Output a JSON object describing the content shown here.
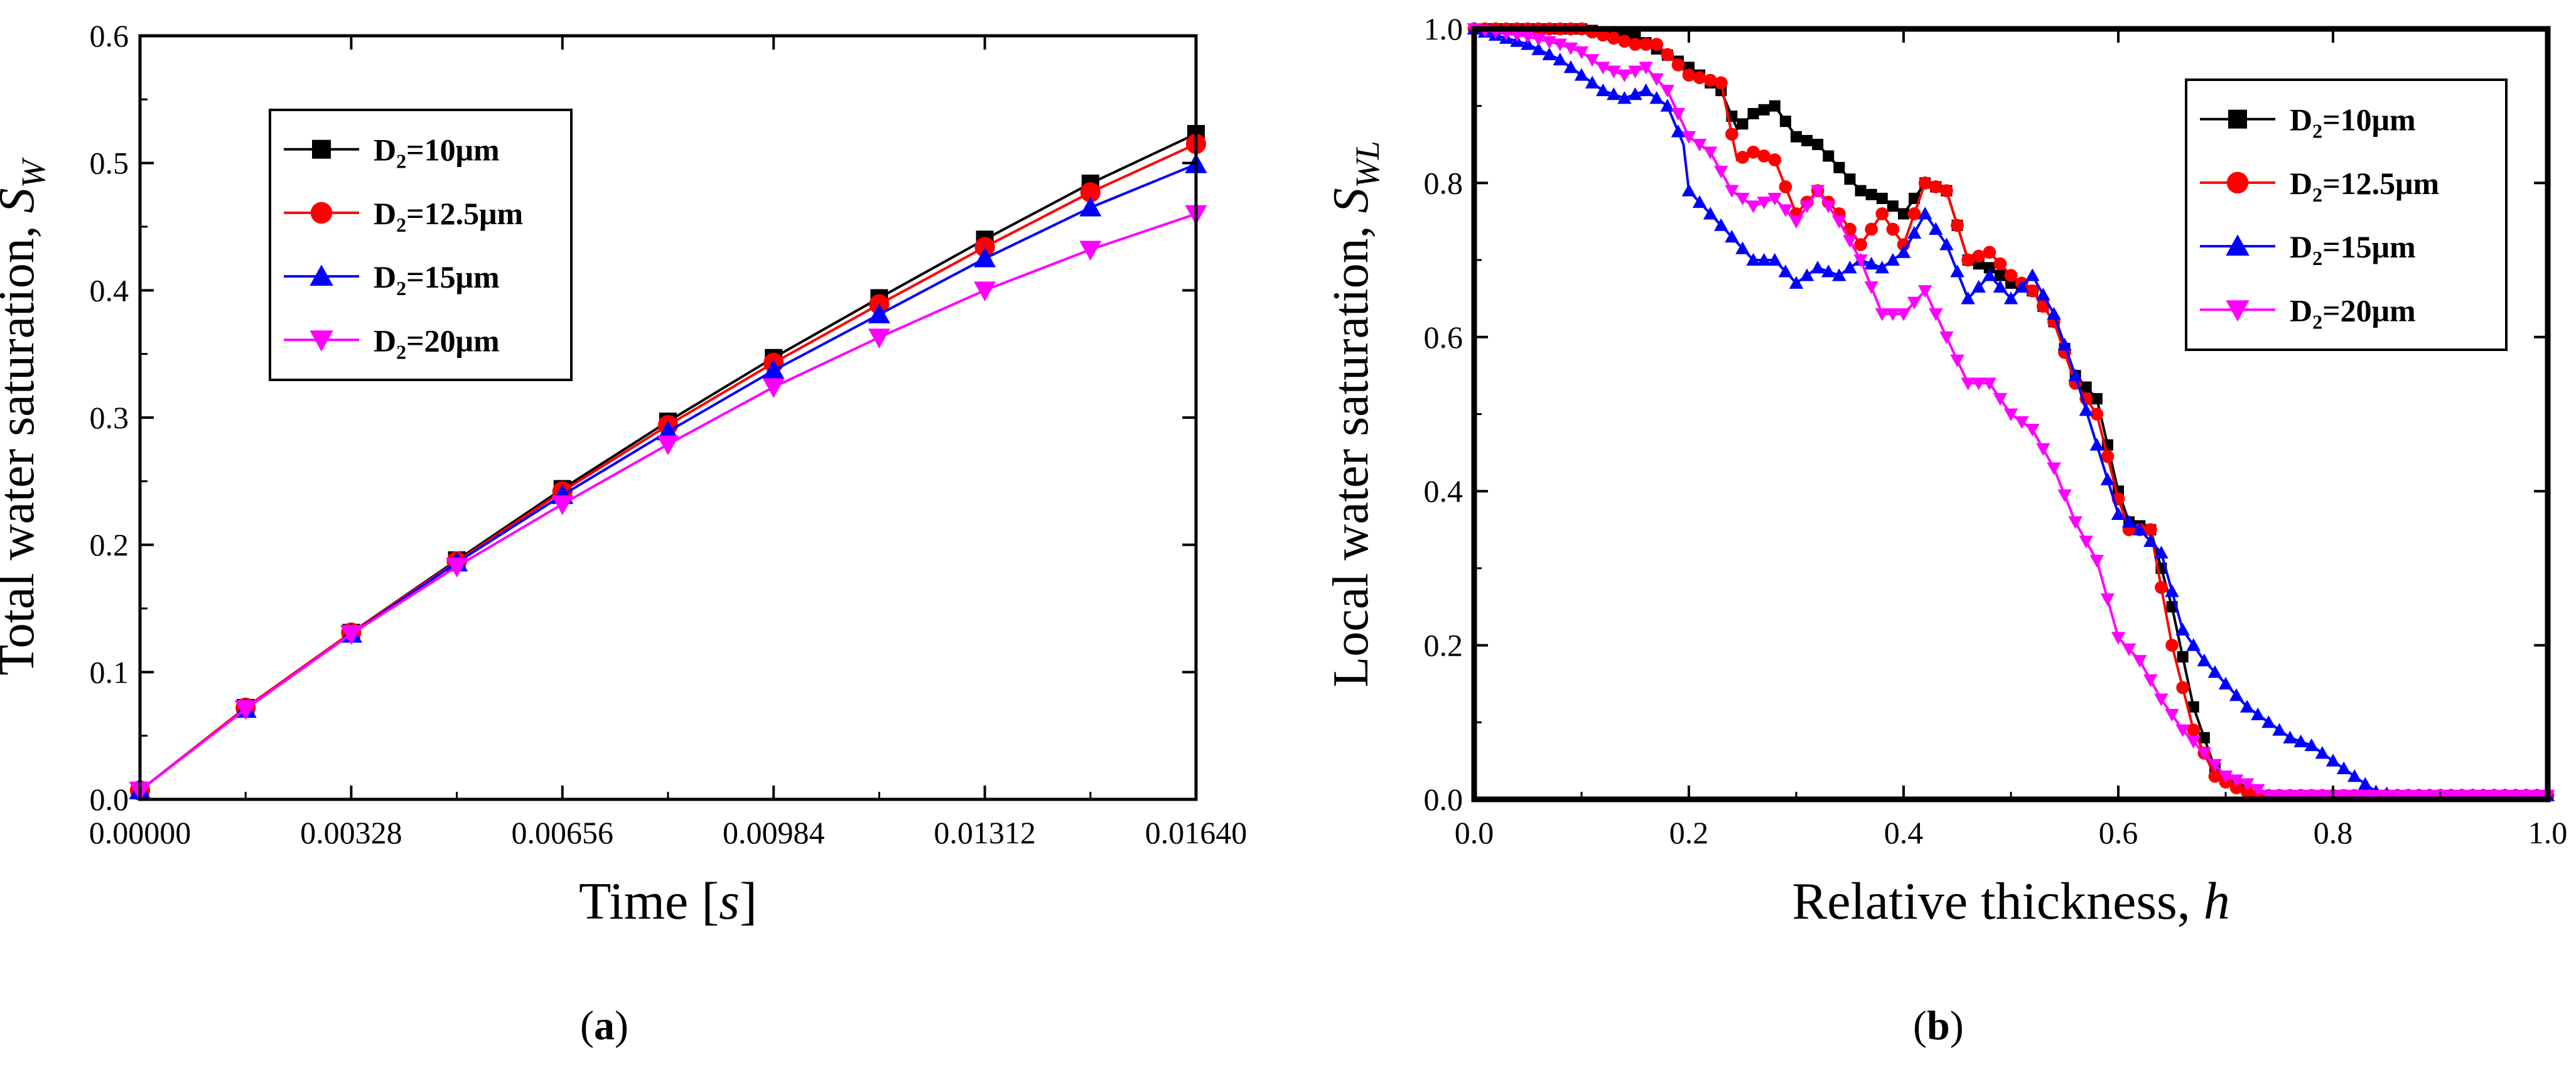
{
  "colors": {
    "d10": "#000000",
    "d125": "#ff0000",
    "d15": "#0000ff",
    "d20": "#ff00ff"
  },
  "captions": {
    "a_open": "(",
    "a_letter": "a",
    "a_close": ")",
    "b_open": "(",
    "b_letter": "b",
    "b_close": ")"
  },
  "chart_data": [
    {
      "id": "a",
      "type": "line",
      "title": "",
      "xlabel": "Time [s]",
      "xlabel_text": "Time [",
      "xlabel_italic": "s",
      "xlabel_end": "]",
      "ylabel_text": "Total water saturation, ",
      "ylabel_italic": "S",
      "ylabel_sub": "W",
      "xlim": [
        0,
        0.0164
      ],
      "ylim": [
        0,
        0.6
      ],
      "xticks": [
        0.0,
        0.00328,
        0.00656,
        0.00984,
        0.01312,
        0.0164
      ],
      "xtick_labels": [
        "0.00000",
        "0.00328",
        "0.00656",
        "0.00984",
        "0.01312",
        "0.01640"
      ],
      "yticks": [
        0.0,
        0.1,
        0.2,
        0.3,
        0.4,
        0.5,
        0.6
      ],
      "ytick_labels": [
        "0.0",
        "0.1",
        "0.2",
        "0.3",
        "0.4",
        "0.5",
        "0.6"
      ],
      "legend_position": "top-left",
      "x": [
        0.0,
        0.00164,
        0.00328,
        0.00492,
        0.00656,
        0.0082,
        0.00984,
        0.01148,
        0.01312,
        0.01476,
        0.0164
      ],
      "series": [
        {
          "key": "d10",
          "label_main": "D",
          "label_sub": "2",
          "label_rest": "=10μm",
          "marker": "square",
          "values": [
            0.007,
            0.072,
            0.131,
            0.188,
            0.244,
            0.297,
            0.347,
            0.394,
            0.44,
            0.484,
            0.523
          ]
        },
        {
          "key": "d125",
          "label_main": "D",
          "label_sub": "2",
          "label_rest": "=12.5μm",
          "marker": "circle",
          "values": [
            0.007,
            0.072,
            0.131,
            0.187,
            0.242,
            0.294,
            0.343,
            0.389,
            0.434,
            0.477,
            0.515
          ]
        },
        {
          "key": "d15",
          "label_main": "D",
          "label_sub": "2",
          "label_rest": "=15μm",
          "marker": "triangle-up",
          "values": [
            0.007,
            0.071,
            0.13,
            0.186,
            0.239,
            0.289,
            0.337,
            0.381,
            0.425,
            0.465,
            0.499
          ]
        },
        {
          "key": "d20",
          "label_main": "D",
          "label_sub": "2",
          "label_rest": "=20μm",
          "marker": "triangle-down",
          "values": [
            0.007,
            0.071,
            0.13,
            0.183,
            0.232,
            0.279,
            0.324,
            0.363,
            0.4,
            0.432,
            0.46
          ]
        }
      ]
    },
    {
      "id": "b",
      "type": "line",
      "title": "",
      "xlabel": "Relative thickness, h",
      "xlabel_text": "Relative thickness, ",
      "xlabel_italic": "h",
      "xlabel_end": "",
      "ylabel_text": "Local water saturation, ",
      "ylabel_italic": "S",
      "ylabel_sub": "WL",
      "xlim": [
        0,
        1.0
      ],
      "ylim": [
        0,
        1.0
      ],
      "xticks": [
        0.0,
        0.2,
        0.4,
        0.6,
        0.8,
        1.0
      ],
      "xtick_labels": [
        "0.0",
        "0.2",
        "0.4",
        "0.6",
        "0.8",
        "1.0"
      ],
      "yticks": [
        0.0,
        0.2,
        0.4,
        0.6,
        0.8,
        1.0
      ],
      "ytick_labels": [
        "0.0",
        "0.2",
        "0.4",
        "0.6",
        "0.8",
        "1.0"
      ],
      "legend_position": "top-right",
      "series": [
        {
          "key": "d10",
          "label_main": "D",
          "label_sub": "2",
          "label_rest": "=10μm",
          "marker": "square",
          "points": [
            [
              0.0,
              1.0
            ],
            [
              0.1,
              1.0
            ],
            [
              0.15,
              0.99
            ],
            [
              0.2,
              0.95
            ],
            [
              0.23,
              0.92
            ],
            [
              0.245,
              0.87
            ],
            [
              0.26,
              0.89
            ],
            [
              0.28,
              0.9
            ],
            [
              0.3,
              0.86
            ],
            [
              0.32,
              0.85
            ],
            [
              0.34,
              0.82
            ],
            [
              0.36,
              0.79
            ],
            [
              0.38,
              0.78
            ],
            [
              0.4,
              0.76
            ],
            [
              0.42,
              0.8
            ],
            [
              0.44,
              0.79
            ],
            [
              0.46,
              0.7
            ],
            [
              0.48,
              0.69
            ],
            [
              0.5,
              0.67
            ],
            [
              0.52,
              0.66
            ],
            [
              0.54,
              0.62
            ],
            [
              0.56,
              0.55
            ],
            [
              0.58,
              0.52
            ],
            [
              0.6,
              0.4
            ],
            [
              0.61,
              0.36
            ],
            [
              0.63,
              0.35
            ],
            [
              0.65,
              0.25
            ],
            [
              0.67,
              0.12
            ],
            [
              0.69,
              0.04
            ],
            [
              0.71,
              0.02
            ],
            [
              0.73,
              0.005
            ],
            [
              0.75,
              0.005
            ],
            [
              1.0,
              0.005
            ]
          ]
        },
        {
          "key": "d125",
          "label_main": "D",
          "label_sub": "2",
          "label_rest": "=12.5μm",
          "marker": "circle",
          "points": [
            [
              0.0,
              1.0
            ],
            [
              0.1,
              1.0
            ],
            [
              0.15,
              0.98
            ],
            [
              0.17,
              0.98
            ],
            [
              0.2,
              0.94
            ],
            [
              0.23,
              0.93
            ],
            [
              0.245,
              0.83
            ],
            [
              0.26,
              0.84
            ],
            [
              0.28,
              0.83
            ],
            [
              0.3,
              0.76
            ],
            [
              0.32,
              0.79
            ],
            [
              0.34,
              0.76
            ],
            [
              0.36,
              0.72
            ],
            [
              0.38,
              0.76
            ],
            [
              0.4,
              0.72
            ],
            [
              0.42,
              0.8
            ],
            [
              0.44,
              0.79
            ],
            [
              0.46,
              0.7
            ],
            [
              0.48,
              0.71
            ],
            [
              0.5,
              0.68
            ],
            [
              0.52,
              0.66
            ],
            [
              0.54,
              0.62
            ],
            [
              0.56,
              0.54
            ],
            [
              0.58,
              0.5
            ],
            [
              0.6,
              0.39
            ],
            [
              0.61,
              0.35
            ],
            [
              0.63,
              0.35
            ],
            [
              0.65,
              0.2
            ],
            [
              0.67,
              0.09
            ],
            [
              0.69,
              0.03
            ],
            [
              0.71,
              0.015
            ],
            [
              0.73,
              0.005
            ],
            [
              0.75,
              0.005
            ],
            [
              1.0,
              0.005
            ]
          ]
        },
        {
          "key": "d15",
          "label_main": "D",
          "label_sub": "2",
          "label_rest": "=15μm",
          "marker": "triangle-up",
          "points": [
            [
              0.0,
              1.0
            ],
            [
              0.05,
              0.98
            ],
            [
              0.08,
              0.96
            ],
            [
              0.1,
              0.94
            ],
            [
              0.12,
              0.92
            ],
            [
              0.14,
              0.91
            ],
            [
              0.16,
              0.92
            ],
            [
              0.18,
              0.9
            ],
            [
              0.195,
              0.85
            ],
            [
              0.2,
              0.79
            ],
            [
              0.22,
              0.76
            ],
            [
              0.24,
              0.73
            ],
            [
              0.26,
              0.7
            ],
            [
              0.28,
              0.7
            ],
            [
              0.3,
              0.67
            ],
            [
              0.32,
              0.69
            ],
            [
              0.34,
              0.68
            ],
            [
              0.36,
              0.7
            ],
            [
              0.38,
              0.69
            ],
            [
              0.4,
              0.71
            ],
            [
              0.42,
              0.76
            ],
            [
              0.44,
              0.72
            ],
            [
              0.46,
              0.65
            ],
            [
              0.48,
              0.68
            ],
            [
              0.5,
              0.65
            ],
            [
              0.52,
              0.68
            ],
            [
              0.54,
              0.63
            ],
            [
              0.56,
              0.55
            ],
            [
              0.58,
              0.46
            ],
            [
              0.6,
              0.37
            ],
            [
              0.62,
              0.35
            ],
            [
              0.64,
              0.32
            ],
            [
              0.66,
              0.22
            ],
            [
              0.68,
              0.18
            ],
            [
              0.7,
              0.15
            ],
            [
              0.72,
              0.12
            ],
            [
              0.74,
              0.1
            ],
            [
              0.76,
              0.08
            ],
            [
              0.78,
              0.07
            ],
            [
              0.8,
              0.05
            ],
            [
              0.82,
              0.03
            ],
            [
              0.84,
              0.01
            ],
            [
              0.86,
              0.005
            ],
            [
              1.0,
              0.005
            ]
          ]
        },
        {
          "key": "d20",
          "label_main": "D",
          "label_sub": "2",
          "label_rest": "=20μm",
          "marker": "triangle-down",
          "points": [
            [
              0.0,
              1.0
            ],
            [
              0.05,
              0.99
            ],
            [
              0.08,
              0.98
            ],
            [
              0.1,
              0.97
            ],
            [
              0.12,
              0.95
            ],
            [
              0.14,
              0.94
            ],
            [
              0.16,
              0.95
            ],
            [
              0.18,
              0.92
            ],
            [
              0.2,
              0.86
            ],
            [
              0.22,
              0.84
            ],
            [
              0.24,
              0.79
            ],
            [
              0.26,
              0.77
            ],
            [
              0.28,
              0.78
            ],
            [
              0.3,
              0.75
            ],
            [
              0.32,
              0.79
            ],
            [
              0.34,
              0.75
            ],
            [
              0.36,
              0.7
            ],
            [
              0.38,
              0.63
            ],
            [
              0.4,
              0.63
            ],
            [
              0.42,
              0.66
            ],
            [
              0.44,
              0.6
            ],
            [
              0.46,
              0.54
            ],
            [
              0.48,
              0.54
            ],
            [
              0.5,
              0.5
            ],
            [
              0.52,
              0.48
            ],
            [
              0.54,
              0.43
            ],
            [
              0.56,
              0.36
            ],
            [
              0.58,
              0.31
            ],
            [
              0.6,
              0.21
            ],
            [
              0.62,
              0.18
            ],
            [
              0.64,
              0.13
            ],
            [
              0.66,
              0.09
            ],
            [
              0.68,
              0.06
            ],
            [
              0.7,
              0.03
            ],
            [
              0.72,
              0.02
            ],
            [
              0.74,
              0.005
            ],
            [
              0.76,
              0.005
            ],
            [
              1.0,
              0.005
            ]
          ]
        }
      ]
    }
  ]
}
